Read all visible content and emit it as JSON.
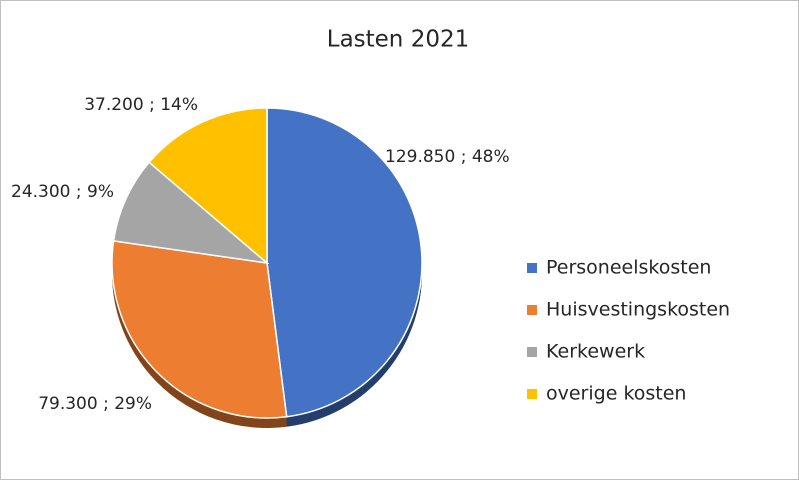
{
  "chart_data": {
    "type": "pie",
    "title": "Lasten 2021",
    "categories": [
      "Personeelskosten",
      "Huisvestingskosten",
      "Kerkewerk",
      "overige kosten"
    ],
    "values": [
      129850,
      79300,
      24300,
      37200
    ],
    "value_labels": [
      "129.850 ; 48%",
      "79.300 ; 29%",
      "24.300 ; 9%",
      "37.200 ; 14%"
    ],
    "colors": [
      "#4472c4",
      "#ed7d31",
      "#a5a5a5",
      "#ffc000"
    ],
    "legend": "right"
  }
}
